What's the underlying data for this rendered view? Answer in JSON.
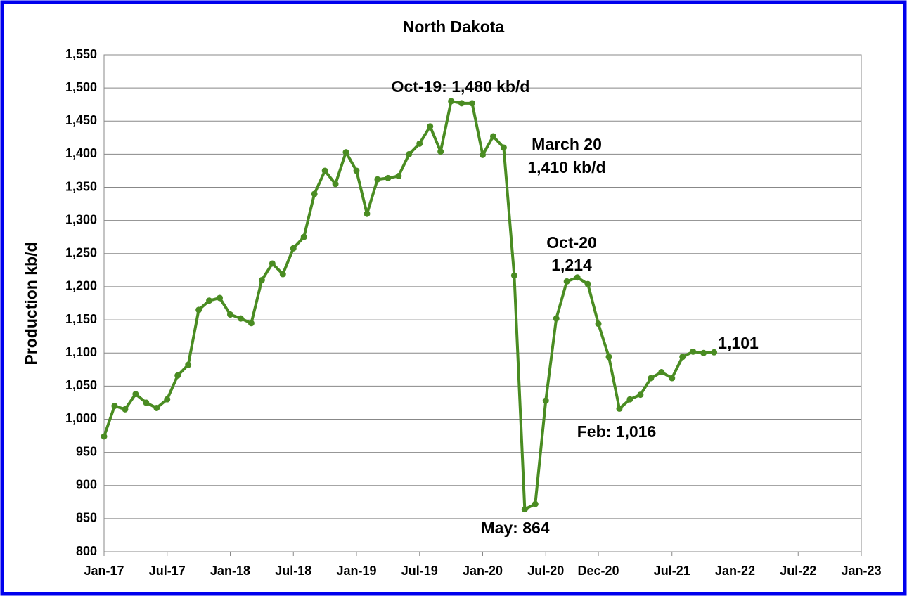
{
  "chart_data": {
    "type": "line",
    "title": "North Dakota",
    "y_label": "Production kb/d",
    "x": [
      "2017-01",
      "2017-02",
      "2017-03",
      "2017-04",
      "2017-05",
      "2017-06",
      "2017-07",
      "2017-08",
      "2017-09",
      "2017-10",
      "2017-11",
      "2017-12",
      "2018-01",
      "2018-02",
      "2018-03",
      "2018-04",
      "2018-05",
      "2018-06",
      "2018-07",
      "2018-08",
      "2018-09",
      "2018-10",
      "2018-11",
      "2018-12",
      "2019-01",
      "2019-02",
      "2019-03",
      "2019-04",
      "2019-05",
      "2019-06",
      "2019-07",
      "2019-08",
      "2019-09",
      "2019-10",
      "2019-11",
      "2019-12",
      "2020-01",
      "2020-02",
      "2020-03",
      "2020-04",
      "2020-05",
      "2020-06",
      "2020-07",
      "2020-08",
      "2020-09",
      "2020-10",
      "2020-11",
      "2020-12",
      "2021-01",
      "2021-02",
      "2021-03",
      "2021-04",
      "2021-05",
      "2021-06",
      "2021-07",
      "2021-08",
      "2021-09",
      "2021-10",
      "2021-11"
    ],
    "values": [
      974,
      1020,
      1015,
      1038,
      1025,
      1017,
      1030,
      1066,
      1082,
      1165,
      1179,
      1183,
      1158,
      1152,
      1145,
      1210,
      1235,
      1219,
      1258,
      1275,
      1340,
      1375,
      1355,
      1403,
      1375,
      1310,
      1362,
      1364,
      1367,
      1400,
      1416,
      1442,
      1404,
      1480,
      1477,
      1477,
      1399,
      1427,
      1410,
      1217,
      864,
      872,
      1028,
      1152,
      1208,
      1214,
      1204,
      1144,
      1094,
      1016,
      1030,
      1037,
      1062,
      1071,
      1062,
      1094,
      1102,
      1100,
      1101
    ],
    "color": "#4a8c22",
    "xlim": [
      "2017-01",
      "2023-01"
    ],
    "xticks": [
      {
        "value": "2017-01",
        "label": "Jan-17"
      },
      {
        "value": "2017-07",
        "label": "Jul-17"
      },
      {
        "value": "2018-01",
        "label": "Jan-18"
      },
      {
        "value": "2018-07",
        "label": "Jul-18"
      },
      {
        "value": "2019-01",
        "label": "Jan-19"
      },
      {
        "value": "2019-07",
        "label": "Jul-19"
      },
      {
        "value": "2020-01",
        "label": "Jan-20"
      },
      {
        "value": "2020-07",
        "label": "Jul-20"
      },
      {
        "value": "2020-12",
        "label": "Dec-20"
      },
      {
        "value": "2021-07",
        "label": "Jul-21"
      },
      {
        "value": "2022-01",
        "label": "Jan-22"
      },
      {
        "value": "2022-07",
        "label": "Jul-22"
      },
      {
        "value": "2023-01",
        "label": "Jan-23"
      }
    ],
    "ylim": [
      800,
      1550
    ],
    "yticks": [
      800,
      850,
      900,
      950,
      {
        "value": 1000,
        "label": "1,000"
      },
      {
        "value": 1050,
        "label": "1,050"
      },
      {
        "value": 1100,
        "label": "1,100"
      },
      {
        "value": 1150,
        "label": "1,150"
      },
      {
        "value": 1200,
        "label": "1,200"
      },
      {
        "value": 1250,
        "label": "1,250"
      },
      {
        "value": 1300,
        "label": "1,300"
      },
      {
        "value": 1350,
        "label": "1,350"
      },
      {
        "value": 1400,
        "label": "1,400"
      },
      {
        "value": 1450,
        "label": "1,450"
      },
      {
        "value": 1500,
        "label": "1,500"
      },
      {
        "value": 1550,
        "label": "1,550"
      }
    ],
    "grid": true,
    "annotations": [
      "Oct-19: 1,480 kb/d",
      "March 20",
      "1,410 kb/d",
      "Oct-20",
      "1,214",
      "1,101",
      "Feb: 1,016",
      "May: 864"
    ]
  }
}
